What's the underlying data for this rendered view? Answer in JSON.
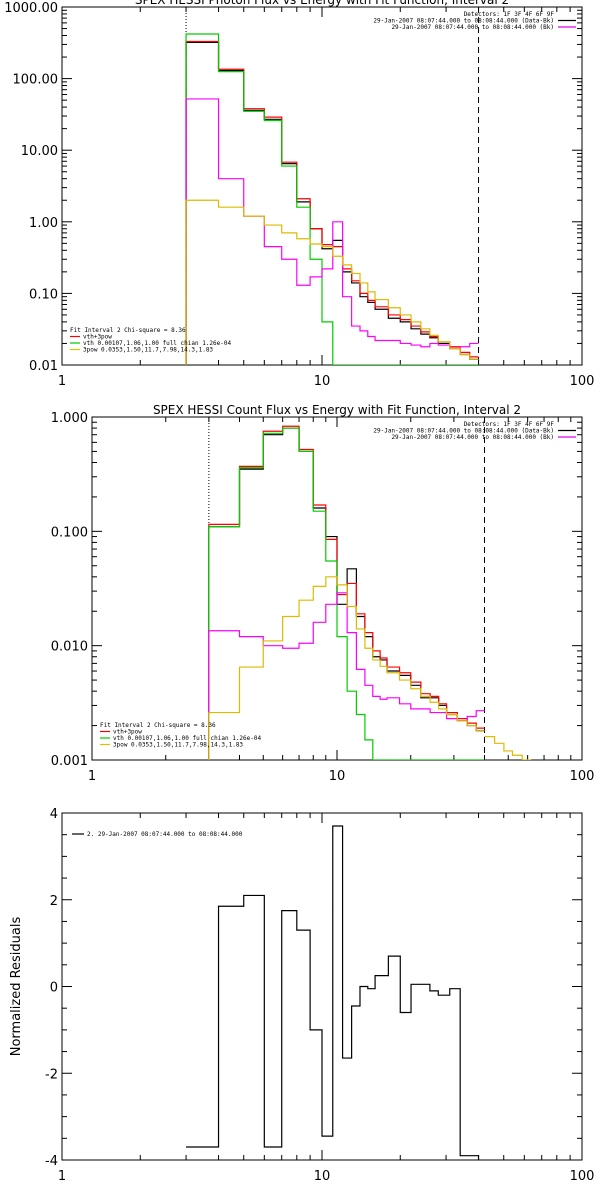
{
  "chart_data": [
    {
      "type": "line",
      "title": "SPEX HESSI Photon Flux vs Energy with Fit Function, Interval 2",
      "xlabel": "",
      "ylabel": "",
      "xscale": "log",
      "yscale": "log",
      "xlim": [
        1,
        100
      ],
      "ylim": [
        0.01,
        1000
      ],
      "xticks": [
        "1",
        "10",
        "100"
      ],
      "yticks": [
        "0.01",
        "0.10",
        "1.00",
        "10.00",
        "100.00",
        "1000.00"
      ],
      "yticks_values": [
        0.01,
        0.1,
        1,
        10,
        100,
        1000
      ],
      "fit_range": [
        3,
        40
      ],
      "header_lines": [
        {
          "text": "Detectors: 1F 3F 4F 6F 9F",
          "color": ""
        },
        {
          "text": "29-Jan-2007 08:07:44.000 to 08:08:44.000 (Data-Bk)",
          "color": "#000000"
        },
        {
          "text": "29-Jan-2007 08:07:44.000 to 08:08:44.000 (Bk)",
          "color": "#e000e0"
        }
      ],
      "annotations": [
        {
          "text": "Fit Interval  2    Chi-square = 8.36",
          "color": "#000000"
        },
        {
          "text": "vth+3pow",
          "color": "#ff0000"
        },
        {
          "text": "vth 0.00107,1.06,1.00  full chian 1.26e-04",
          "color": "#00cc00"
        },
        {
          "text": "3pow 0.0353,1.50,11.7,7.98,14.3,1.83",
          "color": "#e0c000"
        }
      ],
      "edges": [
        3,
        4,
        5,
        6,
        7,
        8,
        9,
        10,
        11,
        12,
        13,
        14,
        15,
        16,
        18,
        20,
        22,
        24,
        26,
        28,
        31,
        34,
        37,
        40
      ],
      "series": [
        {
          "name": "",
          "color": "#000000",
          "values": [
            320,
            130,
            36,
            27,
            6.5,
            1.9,
            0.8,
            0.42,
            0.55,
            0.2,
            0.14,
            0.09,
            0.075,
            0.06,
            0.045,
            0.04,
            0.032,
            0.027,
            0.024,
            0.02,
            0.017,
            0.014,
            0.012
          ]
        },
        {
          "name": "",
          "color": "#ff0000",
          "values": [
            330,
            135,
            38,
            29,
            6.8,
            2.1,
            0.8,
            0.48,
            0.45,
            0.22,
            0.15,
            0.1,
            0.08,
            0.065,
            0.05,
            0.043,
            0.035,
            0.029,
            0.025,
            0.021,
            0.018,
            0.015,
            0.013
          ]
        },
        {
          "name": "",
          "color": "#00cc00",
          "values": [
            420,
            125,
            35,
            26,
            6.0,
            1.6,
            0.3,
            0.04,
            0.01,
            0.01,
            0.01,
            0.01,
            0.01,
            0.01,
            0.01,
            0.01,
            0.01,
            0.01,
            0.01,
            0.01,
            0.01,
            0.01,
            0.01
          ]
        },
        {
          "name": "",
          "color": "#ff00ff",
          "values": [
            52,
            4,
            1.2,
            0.45,
            0.3,
            0.13,
            0.17,
            0.22,
            1.0,
            0.09,
            0.035,
            0.03,
            0.025,
            0.022,
            0.022,
            0.02,
            0.019,
            0.018,
            0.02,
            0.019,
            0.017,
            0.018,
            0.02
          ]
        },
        {
          "name": "",
          "color": "#ddbb00",
          "values": [
            2,
            1.6,
            1.2,
            0.9,
            0.7,
            0.58,
            0.49,
            0.45,
            0.33,
            0.25,
            0.19,
            0.14,
            0.105,
            0.082,
            0.063,
            0.05,
            0.04,
            0.032,
            0.026,
            0.021,
            0.017,
            0.014,
            0.012
          ]
        }
      ]
    },
    {
      "type": "line",
      "title": "SPEX HESSI Count Flux vs Energy with Fit Function, Interval 2",
      "xlabel": "",
      "ylabel": "",
      "xscale": "log",
      "yscale": "log",
      "xlim": [
        1,
        100
      ],
      "ylim": [
        0.001,
        1.0
      ],
      "xticks": [
        "1",
        "10",
        "100"
      ],
      "yticks": [
        "0.001",
        "0.010",
        "0.100",
        "1.000"
      ],
      "yticks_values": [
        0.001,
        0.01,
        0.1,
        1
      ],
      "fit_range": [
        3,
        40
      ],
      "header_lines": [
        {
          "text": "Detectors: 1F 3F 4F 6F 9F",
          "color": ""
        },
        {
          "text": "29-Jan-2007 08:07:44.000 to 08:08:44.000 (Data-Bk)",
          "color": "#000000"
        },
        {
          "text": "29-Jan-2007 08:07:44.000 to 08:08:44.000 (Bk)",
          "color": "#e000e0"
        }
      ],
      "annotations": [
        {
          "text": "Fit Interval  2    Chi-square = 8.36",
          "color": "#000000"
        },
        {
          "text": "vth+3pow",
          "color": "#ff0000"
        },
        {
          "text": "vth 0.00107,1.06,1.00  full chian 1.26e-04",
          "color": "#00cc00"
        },
        {
          "text": "3pow 0.0353,1.50,11.7,7.98,14.3,1.83",
          "color": "#e0c000"
        }
      ],
      "edges": [
        3,
        4,
        5,
        6,
        7,
        8,
        9,
        10,
        11,
        12,
        13,
        14,
        15,
        16,
        18,
        20,
        22,
        24,
        26,
        28,
        31,
        34,
        37,
        40
      ],
      "extended_edges": [
        40,
        44,
        48,
        52,
        57,
        62
      ],
      "series": [
        {
          "name": "",
          "color": "#000000",
          "values": [
            0.11,
            0.35,
            0.7,
            0.8,
            0.5,
            0.16,
            0.09,
            0.023,
            0.047,
            0.018,
            0.012,
            0.008,
            0.0075,
            0.006,
            0.0055,
            0.0045,
            0.0035,
            0.0035,
            0.003,
            0.0025,
            0.0022,
            0.002,
            0.0018
          ]
        },
        {
          "name": "",
          "color": "#ff0000",
          "values": [
            0.115,
            0.37,
            0.75,
            0.83,
            0.52,
            0.17,
            0.085,
            0.028,
            0.035,
            0.019,
            0.013,
            0.009,
            0.0078,
            0.0065,
            0.0058,
            0.0048,
            0.0038,
            0.0036,
            0.0031,
            0.0026,
            0.0023,
            0.0021,
            0.0019
          ]
        },
        {
          "name": "",
          "color": "#00cc00",
          "values": [
            0.11,
            0.36,
            0.72,
            0.8,
            0.5,
            0.15,
            0.055,
            0.012,
            0.004,
            0.0025,
            0.0015,
            0.001,
            0.001,
            0.001,
            0.001,
            0.001,
            0.001,
            0.001,
            0.001,
            0.001,
            0.001,
            0.001,
            0.001
          ]
        },
        {
          "name": "",
          "color": "#ff00ff",
          "values": [
            0.0135,
            0.012,
            0.01,
            0.0095,
            0.0105,
            0.016,
            0.023,
            0.029,
            0.013,
            0.0062,
            0.0045,
            0.0036,
            0.0034,
            0.0035,
            0.0031,
            0.0028,
            0.0028,
            0.0026,
            0.0026,
            0.0023,
            0.0022,
            0.0024,
            0.0027
          ]
        },
        {
          "name": "",
          "color": "#ddbb00",
          "values": [
            0.0026,
            0.0065,
            0.011,
            0.018,
            0.025,
            0.033,
            0.04,
            0.034,
            0.022,
            0.014,
            0.0095,
            0.0075,
            0.0066,
            0.0058,
            0.005,
            0.0042,
            0.0036,
            0.0032,
            0.0028,
            0.0025,
            0.0022,
            0.002,
            0.0018
          ]
        },
        {
          "name": "",
          "color": "#ddbb00",
          "segment": "extension",
          "values": [
            0.0016,
            0.0014,
            0.0012,
            0.0011,
            0.001
          ]
        }
      ]
    },
    {
      "type": "line",
      "title": "",
      "xlabel": "",
      "ylabel": "Normalized Residuals",
      "xscale": "log",
      "yscale": "linear",
      "xlim": [
        1,
        100
      ],
      "ylim": [
        -4,
        4
      ],
      "xticks": [
        "1",
        "10",
        "100"
      ],
      "yticks": [
        "-4",
        "-2",
        "0",
        "2",
        "4"
      ],
      "yticks_values": [
        -4,
        -2,
        0,
        2,
        4
      ],
      "legend": "2. 29-Jan-2007 08:07:44.000 to 08:08:44.000",
      "edges": [
        3,
        4,
        5,
        6,
        7,
        8,
        9,
        10,
        11,
        12,
        13,
        14,
        15,
        16,
        18,
        20,
        22,
        24,
        26,
        28,
        31,
        34,
        37,
        40
      ],
      "series": [
        {
          "name": "2. 29-Jan-2007 08:07:44.000 to 08:08:44.000",
          "color": "#000000",
          "values": [
            -3.7,
            1.85,
            2.1,
            -3.7,
            1.75,
            1.3,
            -1.0,
            -3.45,
            3.7,
            -1.65,
            -0.45,
            0.0,
            -0.05,
            0.25,
            0.7,
            -0.6,
            0.05,
            0.05,
            -0.1,
            -0.2,
            -0.05,
            -3.9,
            -3.9
          ]
        }
      ]
    }
  ]
}
